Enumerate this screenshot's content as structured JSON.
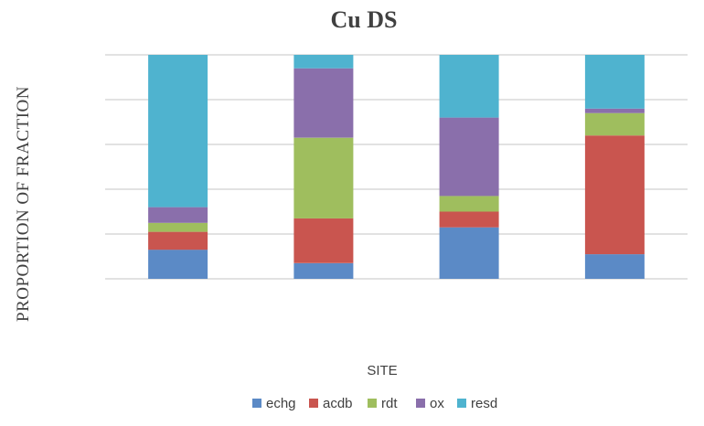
{
  "chart_data": {
    "type": "bar",
    "stacked": true,
    "title": "Cu DS",
    "xlabel": "SITE",
    "ylabel": "PROPORTION OF FRACTION",
    "ylim": [
      0,
      1
    ],
    "gridlines": [
      0,
      0.2,
      0.4,
      0.6,
      0.8,
      1.0
    ],
    "categories": [
      "",
      "",
      "",
      ""
    ],
    "series": [
      {
        "name": "echg",
        "color": "#5b8ac6",
        "values": [
          0.13,
          0.07,
          0.23,
          0.11
        ]
      },
      {
        "name": "acdb",
        "color": "#c9554f",
        "values": [
          0.08,
          0.2,
          0.07,
          0.53
        ]
      },
      {
        "name": "rdt",
        "color": "#9fbe5e",
        "values": [
          0.04,
          0.36,
          0.07,
          0.1
        ]
      },
      {
        "name": "ox",
        "color": "#8a6fab",
        "values": [
          0.07,
          0.31,
          0.35,
          0.02
        ]
      },
      {
        "name": "resd",
        "color": "#4fb3cf",
        "values": [
          0.68,
          0.06,
          0.28,
          0.24
        ]
      }
    ],
    "legend": "bottom",
    "grid": true
  }
}
